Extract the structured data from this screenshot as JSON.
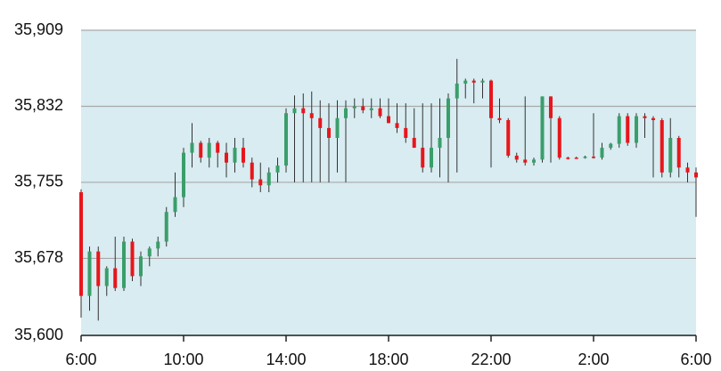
{
  "chart_data": {
    "type": "candlestick",
    "up_color": "#3a9e6a",
    "down_color": "#e8161b",
    "wick_color": "#333333",
    "background": "#d8ecf1",
    "grid": true,
    "xlim": [
      6,
      30
    ],
    "xticks": [
      {
        "value": 6,
        "label": "6:00"
      },
      {
        "value": 10,
        "label": "10:00"
      },
      {
        "value": 14,
        "label": "14:00"
      },
      {
        "value": 18,
        "label": "18:00"
      },
      {
        "value": 22,
        "label": "22:00"
      },
      {
        "value": 26,
        "label": "2:00"
      },
      {
        "value": 30,
        "label": "6:00"
      }
    ],
    "ylim": [
      35600,
      35909
    ],
    "yticks": [
      {
        "value": 35600,
        "label": "35,600"
      },
      {
        "value": 35678,
        "label": "35,678"
      },
      {
        "value": 35755,
        "label": "35,755"
      },
      {
        "value": 35832,
        "label": "35,832"
      },
      {
        "value": 35909,
        "label": "35,909"
      }
    ],
    "x": [
      6,
      6.33,
      6.67,
      7,
      7.33,
      7.67,
      8,
      8.33,
      8.67,
      9,
      9.33,
      9.67,
      10,
      10.33,
      10.67,
      11,
      11.33,
      11.67,
      12,
      12.33,
      12.67,
      13,
      13.33,
      13.67,
      14,
      14.33,
      14.67,
      15,
      15.33,
      15.67,
      16,
      16.33,
      16.67,
      17,
      17.33,
      17.67,
      18,
      18.33,
      18.67,
      19,
      19.33,
      19.67,
      20,
      20.33,
      20.67,
      21,
      21.33,
      21.67,
      22,
      22.33,
      22.67,
      23,
      23.33,
      23.67,
      24,
      24.33,
      24.67,
      25,
      25.33,
      25.67,
      26,
      26.33,
      26.67,
      27,
      27.33,
      27.67,
      28,
      28.33,
      28.67,
      29,
      29.33,
      29.67,
      30
    ],
    "open": [
      35745,
      35640,
      35685,
      35650,
      35668,
      35648,
      35695,
      35660,
      35680,
      35688,
      35695,
      35725,
      35740,
      35785,
      35795,
      35780,
      35795,
      35785,
      35775,
      35790,
      35775,
      35758,
      35752,
      35765,
      35772,
      35825,
      35830,
      35825,
      35820,
      35810,
      35800,
      35820,
      35830,
      35832,
      35828,
      35830,
      35822,
      35815,
      35810,
      35800,
      35790,
      35770,
      35790,
      35800,
      35840,
      35855,
      35858,
      35856,
      35858,
      35820,
      35818,
      35782,
      35778,
      35775,
      35778,
      35842,
      35820,
      35780,
      35780,
      35780,
      35781,
      35780,
      35790,
      35794,
      35822,
      35795,
      35822,
      35820,
      35818,
      35765,
      35800,
      35770,
      35765
    ],
    "high": [
      35748,
      35690,
      35690,
      35670,
      35700,
      35700,
      35698,
      35685,
      35690,
      35700,
      35730,
      35765,
      35790,
      35815,
      35797,
      35800,
      35797,
      35795,
      35800,
      35800,
      35780,
      35775,
      35770,
      35780,
      35830,
      35843,
      35845,
      35847,
      35838,
      35835,
      35838,
      35838,
      35840,
      35840,
      35840,
      35840,
      35840,
      35835,
      35835,
      35830,
      35835,
      35835,
      35840,
      35845,
      35880,
      35860,
      35860,
      35860,
      35859,
      35840,
      35820,
      35785,
      35842,
      35780,
      35842,
      35842,
      35822,
      35781,
      35781,
      35782,
      35825,
      35795,
      35795,
      35825,
      35825,
      35825,
      35825,
      35822,
      35820,
      35820,
      35802,
      35775,
      35770
    ],
    "low": [
      35618,
      35625,
      35615,
      35640,
      35645,
      35645,
      35655,
      35650,
      35670,
      35680,
      35690,
      35720,
      35730,
      35770,
      35775,
      35770,
      35770,
      35760,
      35765,
      35770,
      35750,
      35745,
      35745,
      35755,
      35765,
      35755,
      35755,
      35755,
      35755,
      35755,
      35765,
      35755,
      35820,
      35825,
      35820,
      35820,
      35815,
      35805,
      35795,
      35790,
      35765,
      35765,
      35760,
      35755,
      35765,
      35840,
      35835,
      35840,
      35770,
      35815,
      35780,
      35775,
      35772,
      35772,
      35775,
      35775,
      35778,
      35778,
      35779,
      35779,
      35779,
      35778,
      35788,
      35790,
      35792,
      35790,
      35800,
      35760,
      35760,
      35760,
      35760,
      35755,
      35720
    ],
    "close": [
      35640,
      35685,
      35650,
      35668,
      35648,
      35695,
      35660,
      35680,
      35688,
      35695,
      35725,
      35740,
      35785,
      35795,
      35780,
      35795,
      35785,
      35775,
      35790,
      35775,
      35758,
      35752,
      35765,
      35772,
      35825,
      35830,
      35825,
      35820,
      35810,
      35800,
      35820,
      35830,
      35832,
      35828,
      35830,
      35822,
      35815,
      35810,
      35800,
      35790,
      35770,
      35790,
      35800,
      35840,
      35855,
      35858,
      35856,
      35858,
      35820,
      35818,
      35782,
      35778,
      35775,
      35778,
      35842,
      35820,
      35780,
      35780,
      35780,
      35781,
      35780,
      35790,
      35794,
      35822,
      35795,
      35822,
      35820,
      35818,
      35765,
      35800,
      35770,
      35765,
      35760
    ]
  }
}
